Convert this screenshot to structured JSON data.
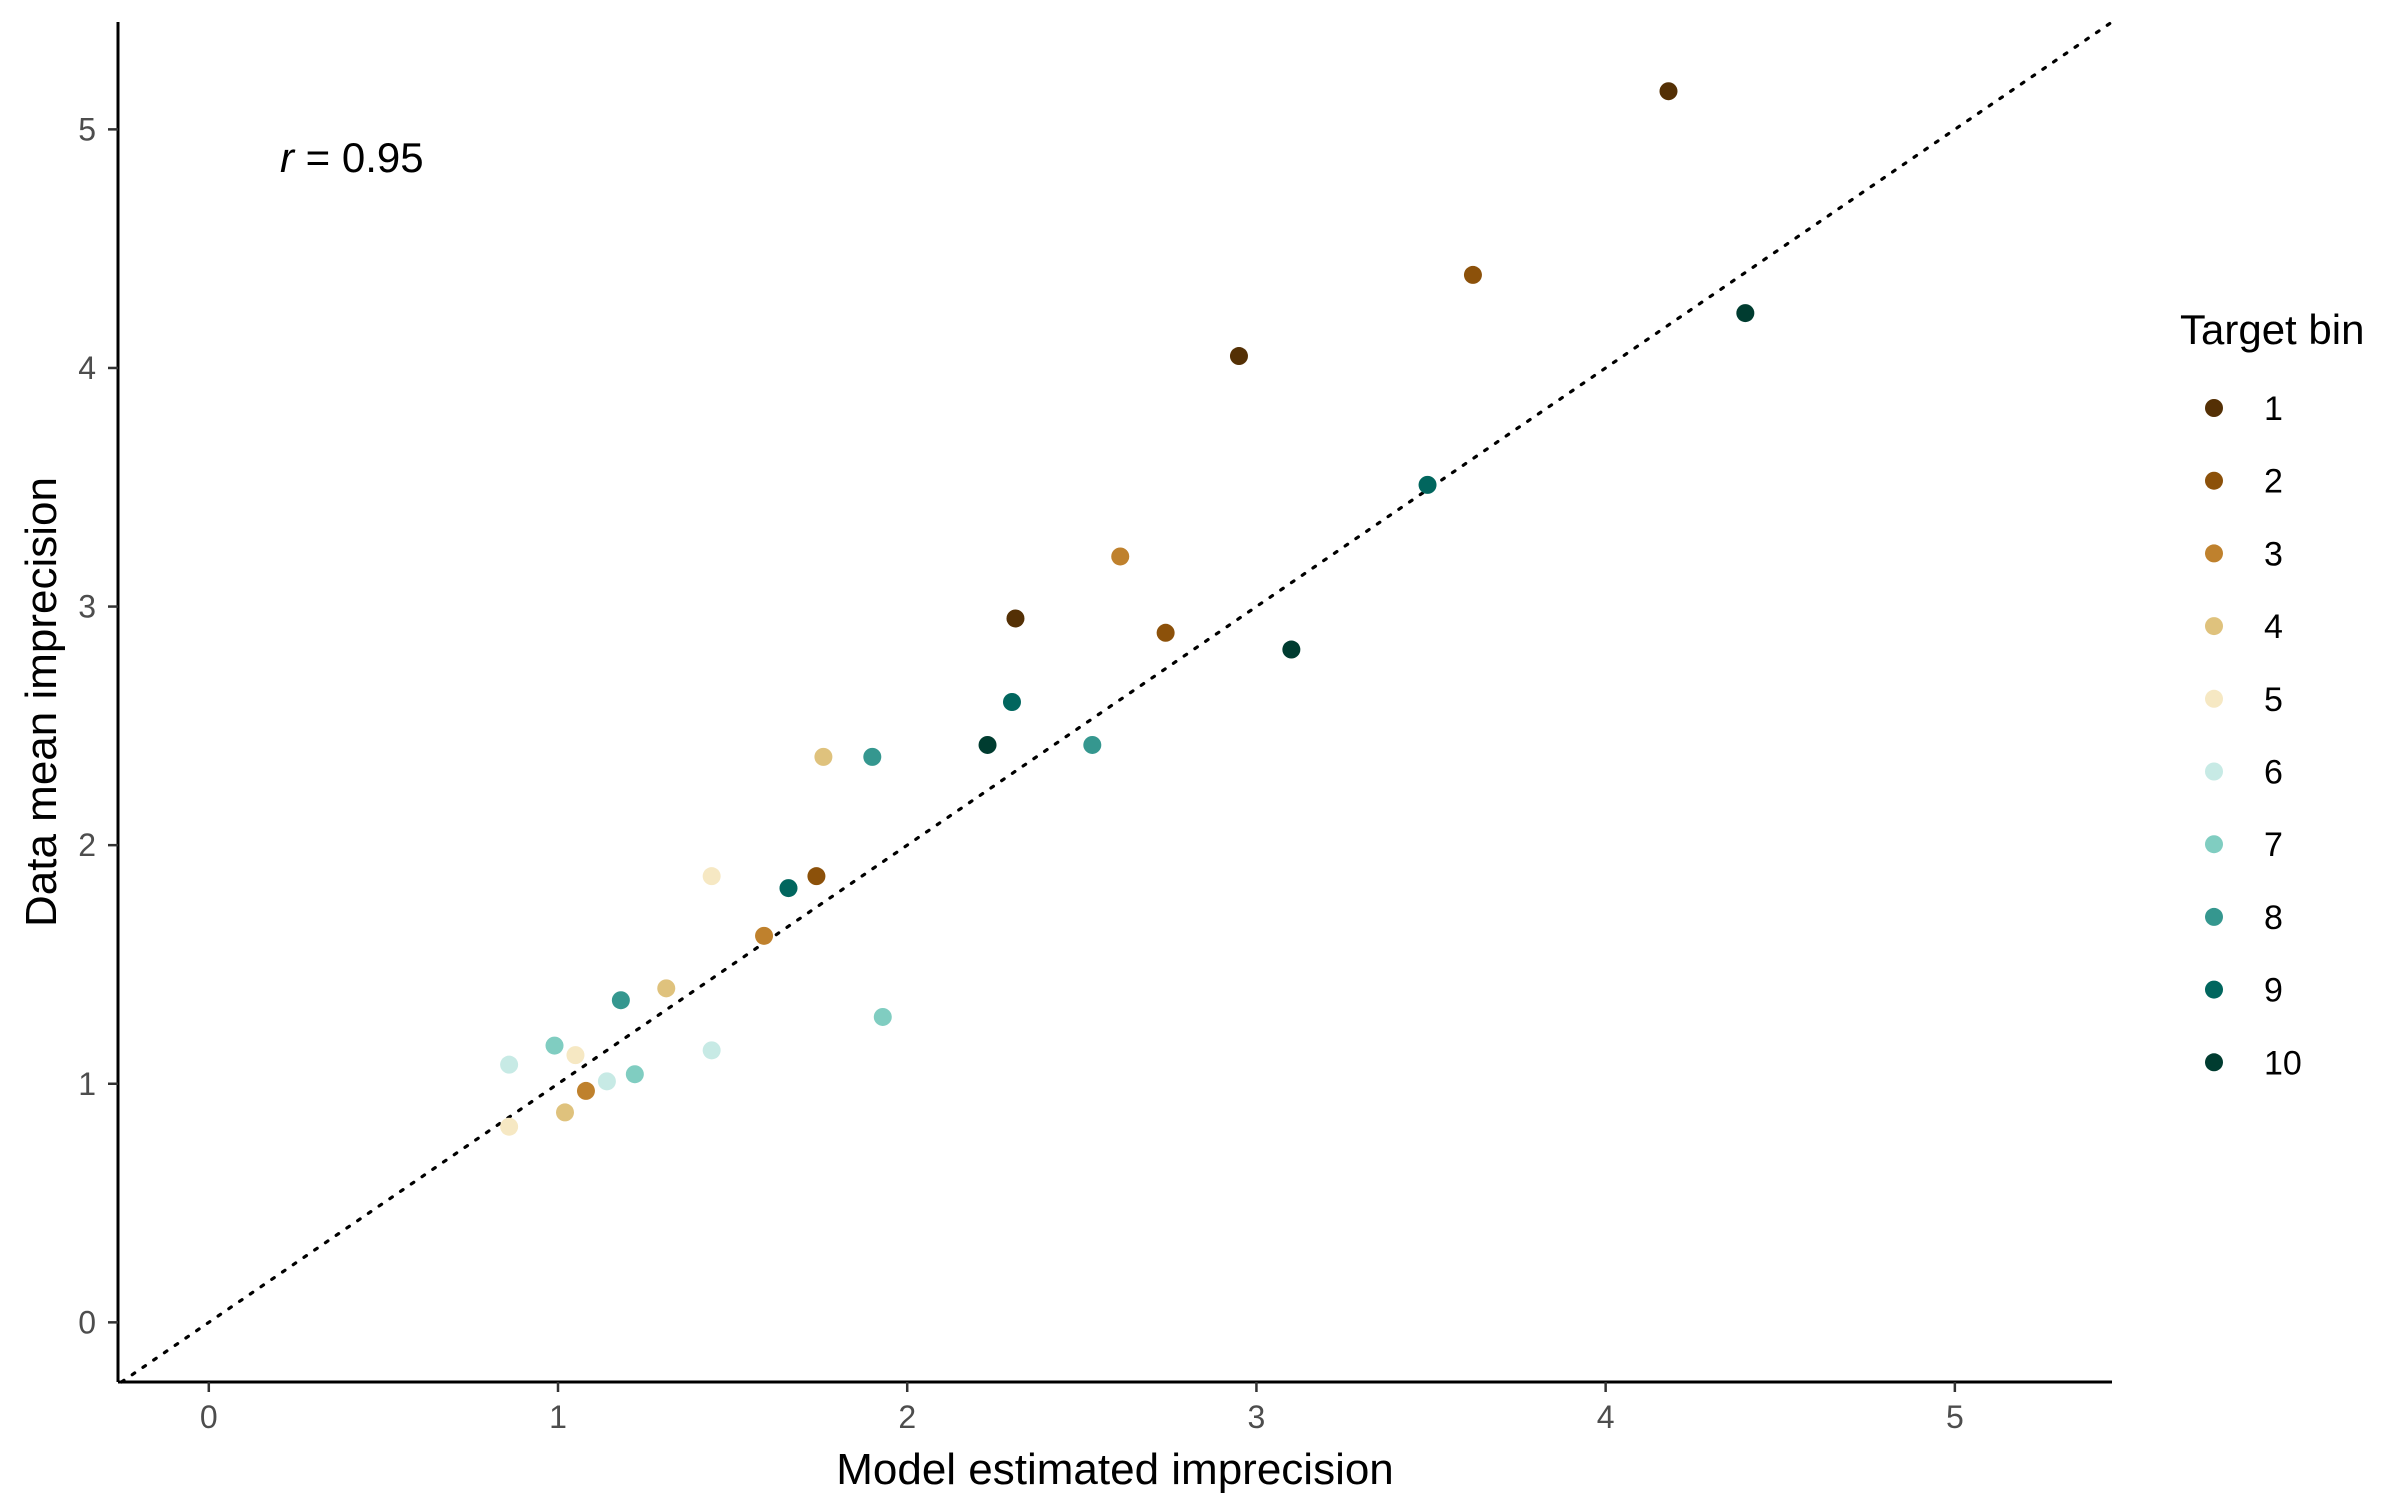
{
  "chart_data": {
    "type": "scatter",
    "xlabel": "Model estimated imprecision",
    "ylabel": "Data mean imprecision",
    "xlim": [
      -0.26,
      5.45
    ],
    "ylim": [
      -0.25,
      5.45
    ],
    "xticks": [
      "0",
      "1",
      "2",
      "3",
      "4",
      "5"
    ],
    "yticks": [
      "0",
      "1",
      "2",
      "3",
      "4",
      "5"
    ],
    "grid": false,
    "reference_line": "y = x (dotted)",
    "annotation": {
      "italic": "r",
      "rest": " = 0.95"
    },
    "legend": {
      "title": "Target bin",
      "placement": "right"
    },
    "series": [
      {
        "name": "1",
        "color": "#543005",
        "points": [
          [
            2.31,
            2.95
          ],
          [
            2.95,
            4.05
          ],
          [
            4.18,
            5.16
          ]
        ]
      },
      {
        "name": "2",
        "color": "#8C510A",
        "points": [
          [
            1.74,
            1.87
          ],
          [
            2.74,
            2.89
          ],
          [
            3.62,
            4.39
          ]
        ]
      },
      {
        "name": "3",
        "color": "#BF812D",
        "points": [
          [
            1.08,
            0.97
          ],
          [
            1.59,
            1.62
          ],
          [
            2.61,
            3.21
          ]
        ]
      },
      {
        "name": "4",
        "color": "#DFC27D",
        "points": [
          [
            1.02,
            0.88
          ],
          [
            1.31,
            1.4
          ],
          [
            1.76,
            2.37
          ]
        ]
      },
      {
        "name": "5",
        "color": "#F6E8C3",
        "points": [
          [
            0.86,
            0.82
          ],
          [
            1.05,
            1.12
          ],
          [
            1.44,
            1.87
          ]
        ]
      },
      {
        "name": "6",
        "color": "#C7EAE5",
        "points": [
          [
            0.86,
            1.08
          ],
          [
            1.14,
            1.01
          ],
          [
            1.44,
            1.14
          ]
        ]
      },
      {
        "name": "7",
        "color": "#80CDC1",
        "points": [
          [
            0.99,
            1.16
          ],
          [
            1.22,
            1.04
          ],
          [
            1.93,
            1.28
          ]
        ]
      },
      {
        "name": "8",
        "color": "#35978F",
        "points": [
          [
            1.18,
            1.35
          ],
          [
            1.9,
            2.37
          ],
          [
            2.53,
            2.42
          ]
        ]
      },
      {
        "name": "9",
        "color": "#01665E",
        "points": [
          [
            1.66,
            1.82
          ],
          [
            2.3,
            2.6
          ],
          [
            3.49,
            3.51
          ]
        ]
      },
      {
        "name": "10",
        "color": "#003C30",
        "points": [
          [
            2.23,
            2.42
          ],
          [
            3.1,
            2.82
          ],
          [
            4.4,
            4.23
          ]
        ]
      }
    ]
  }
}
